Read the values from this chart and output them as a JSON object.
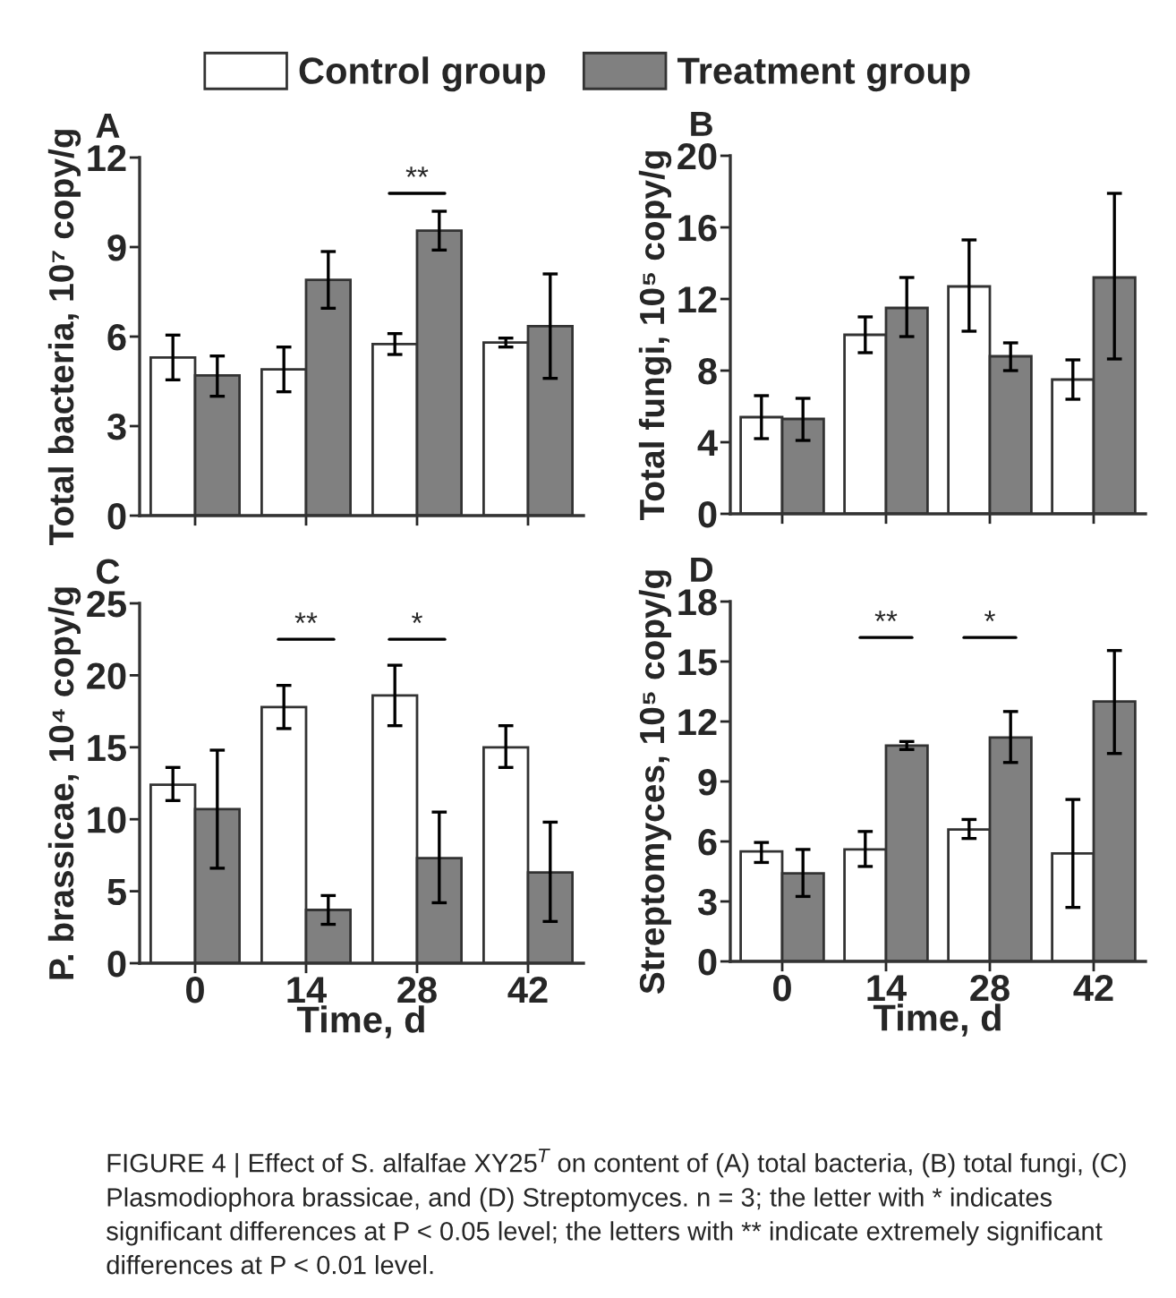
{
  "chart_data": [
    {
      "type": "bar",
      "title": "A",
      "ylabel": "Total bacteria, 10⁷ copy/g",
      "categories": [
        "0",
        "14",
        "28",
        "42"
      ],
      "ylim": [
        0,
        12
      ],
      "yticks": [
        0,
        3,
        6,
        9,
        12
      ],
      "tick_labels": "y",
      "legend": "top",
      "grid": false,
      "series": [
        {
          "name": "Control group",
          "color": "#ffffff",
          "values": [
            5.3,
            4.9,
            5.75,
            5.8
          ],
          "errors": [
            [
              4.55,
              6.05
            ],
            [
              4.15,
              5.65
            ],
            [
              5.4,
              6.1
            ],
            [
              5.65,
              5.95
            ]
          ]
        },
        {
          "name": "Treatment group",
          "color": "#808080",
          "values": [
            4.7,
            7.9,
            9.55,
            6.35
          ],
          "errors": [
            [
              4.0,
              5.35
            ],
            [
              6.95,
              8.85
            ],
            [
              8.9,
              10.2
            ],
            [
              4.6,
              8.1
            ]
          ]
        }
      ],
      "annotations": [
        "**"
      ]
    },
    {
      "type": "bar",
      "title": "B",
      "ylabel": "Total fungi, 10⁵ copy/g",
      "categories": [
        "0",
        "14",
        "28",
        "42"
      ],
      "ylim": [
        0,
        20
      ],
      "yticks": [
        0,
        4,
        8,
        12,
        16,
        20
      ],
      "tick_labels": "y",
      "grid": false,
      "series": [
        {
          "color": "#ffffff",
          "values": [
            5.4,
            10.0,
            12.7,
            7.5
          ],
          "errors": [
            [
              4.2,
              6.6
            ],
            [
              9.0,
              11.0
            ],
            [
              10.2,
              15.3
            ],
            [
              6.4,
              8.6
            ]
          ]
        },
        {
          "color": "#808080",
          "values": [
            5.3,
            11.5,
            8.8,
            13.2
          ],
          "errors": [
            [
              4.1,
              6.45
            ],
            [
              9.9,
              13.2
            ],
            [
              8.0,
              9.55
            ],
            [
              8.65,
              17.9
            ]
          ]
        }
      ]
    },
    {
      "type": "bar",
      "title": "C",
      "xlabel": "Time, d",
      "ylabel": "P. brassicae, 10⁴ copy/g",
      "categories": [
        "0",
        "14",
        "28",
        "42"
      ],
      "ylim": [
        0,
        25
      ],
      "yticks": [
        0,
        5,
        10,
        15,
        20,
        25
      ],
      "grid": false,
      "series": [
        {
          "color": "#ffffff",
          "values": [
            12.4,
            17.8,
            18.6,
            15.0
          ],
          "errors": [
            [
              11.3,
              13.6
            ],
            [
              16.3,
              19.3
            ],
            [
              16.5,
              20.7
            ],
            [
              13.6,
              16.5
            ]
          ]
        },
        {
          "color": "#808080",
          "values": [
            10.7,
            3.7,
            7.3,
            6.3
          ],
          "errors": [
            [
              6.6,
              14.8
            ],
            [
              2.7,
              4.7
            ],
            [
              4.2,
              10.5
            ],
            [
              2.9,
              9.8
            ]
          ]
        }
      ],
      "annotations": [
        "**",
        "*"
      ]
    },
    {
      "type": "bar",
      "title": "D",
      "xlabel": "Time, d",
      "ylabel": "Streptomyces, 10⁵ copy/g",
      "categories": [
        "0",
        "14",
        "28",
        "42"
      ],
      "ylim": [
        0,
        18
      ],
      "yticks": [
        0,
        3,
        6,
        9,
        12,
        15,
        18
      ],
      "grid": false,
      "series": [
        {
          "color": "#ffffff",
          "values": [
            5.5,
            5.6,
            6.6,
            5.4
          ],
          "errors": [
            [
              4.95,
              5.95
            ],
            [
              4.75,
              6.5
            ],
            [
              6.15,
              7.1
            ],
            [
              2.7,
              8.1
            ]
          ]
        },
        {
          "color": "#808080",
          "values": [
            4.4,
            10.8,
            11.2,
            13.0
          ],
          "errors": [
            [
              3.25,
              5.6
            ],
            [
              10.6,
              11.0
            ],
            [
              9.95,
              12.5
            ],
            [
              10.4,
              15.55
            ]
          ]
        }
      ],
      "annotations": [
        "**",
        "*",
        "FIGURE 4 | Effect of S. alfalfae XY25$^{T}$ on content of (A) total bacteria, (B) total fungi, (C) Plasmodiophora brassicae, and (D) Streptomyces. n = 3; the letter with * indicates significant differences at P < 0.05 level; the letters with ** indicate extremely significant differences at P < 0.01 level."
      ]
    }
  ]
}
